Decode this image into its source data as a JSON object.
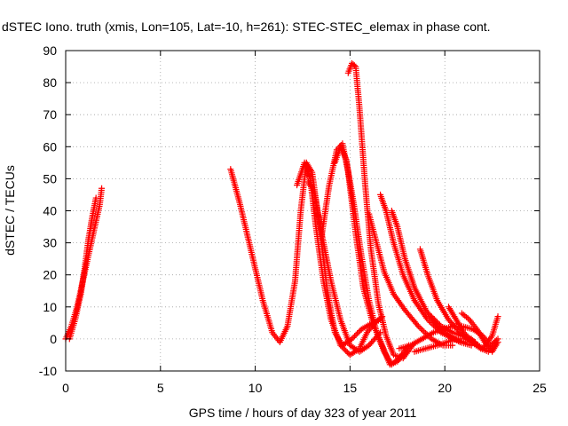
{
  "chart_data": {
    "type": "scatter",
    "title": "dSTEC Iono. truth (xmis, Lon=105, Lat=-10, h=261): STEC-STEC_elemax in phase cont.",
    "xlabel": "GPS time / hours of day 323 of year 2011",
    "ylabel": "dSTEC  / TECUs",
    "xlim": [
      0,
      25
    ],
    "ylim": [
      -10,
      90
    ],
    "x_ticks": [
      "0",
      "5",
      "10",
      "15",
      "20",
      "25"
    ],
    "y_ticks": [
      "-10",
      "0",
      "10",
      "20",
      "30",
      "40",
      "50",
      "60",
      "70",
      "80",
      "90"
    ],
    "grid": true,
    "marker": "plus",
    "color": "#ff0000",
    "series": [
      {
        "points": [
          [
            0.0,
            0
          ],
          [
            0.3,
            4
          ],
          [
            0.6,
            10
          ],
          [
            0.9,
            18
          ],
          [
            1.2,
            26
          ],
          [
            1.5,
            34
          ],
          [
            1.8,
            42
          ],
          [
            1.9,
            47
          ]
        ]
      },
      {
        "points": [
          [
            0.2,
            0
          ],
          [
            0.5,
            6
          ],
          [
            0.8,
            14
          ],
          [
            1.0,
            22
          ],
          [
            1.2,
            31
          ],
          [
            1.4,
            38
          ],
          [
            1.6,
            44
          ]
        ]
      },
      {
        "points": [
          [
            8.7,
            53
          ],
          [
            9.2,
            42
          ],
          [
            9.8,
            27
          ],
          [
            10.4,
            12
          ],
          [
            10.9,
            2
          ],
          [
            11.3,
            -1
          ],
          [
            11.7,
            4
          ],
          [
            12.1,
            18
          ],
          [
            12.4,
            40
          ],
          [
            12.7,
            55
          ],
          [
            13.0,
            52
          ],
          [
            13.4,
            35
          ],
          [
            13.8,
            15
          ],
          [
            14.2,
            2
          ],
          [
            14.6,
            -2
          ],
          [
            15.1,
            0
          ],
          [
            15.6,
            3
          ],
          [
            16.2,
            5
          ],
          [
            16.6,
            6
          ]
        ]
      },
      {
        "points": [
          [
            12.2,
            48
          ],
          [
            12.6,
            55
          ],
          [
            12.9,
            50
          ],
          [
            13.2,
            35
          ],
          [
            13.6,
            18
          ],
          [
            14.0,
            6
          ],
          [
            14.5,
            -2
          ],
          [
            15.0,
            -5
          ],
          [
            15.5,
            -3
          ],
          [
            15.9,
            2
          ],
          [
            16.3,
            5
          ],
          [
            16.7,
            7
          ]
        ]
      },
      {
        "points": [
          [
            12.8,
            49
          ],
          [
            13.1,
            46
          ],
          [
            13.5,
            33
          ],
          [
            14.0,
            18
          ],
          [
            14.5,
            6
          ],
          [
            15.0,
            -2
          ],
          [
            15.5,
            -4
          ],
          [
            16.0,
            -2
          ],
          [
            16.6,
            2
          ]
        ]
      },
      {
        "points": [
          [
            13.5,
            32
          ],
          [
            13.9,
            48
          ],
          [
            14.3,
            59
          ],
          [
            14.6,
            61
          ],
          [
            14.9,
            52
          ],
          [
            15.3,
            33
          ],
          [
            15.7,
            16
          ],
          [
            16.2,
            5
          ],
          [
            16.7,
            -2
          ],
          [
            17.1,
            -8
          ],
          [
            17.5,
            -7
          ],
          [
            18.0,
            -4
          ]
        ]
      },
      {
        "points": [
          [
            14.2,
            55
          ],
          [
            14.5,
            60
          ],
          [
            14.8,
            56
          ],
          [
            15.2,
            42
          ],
          [
            15.6,
            26
          ],
          [
            16.0,
            12
          ],
          [
            16.4,
            2
          ],
          [
            16.8,
            -4
          ],
          [
            17.2,
            -8
          ],
          [
            17.6,
            -6
          ],
          [
            18.1,
            -2
          ]
        ]
      },
      {
        "points": [
          [
            14.9,
            83
          ],
          [
            15.1,
            86
          ],
          [
            15.3,
            85
          ],
          [
            15.5,
            72
          ],
          [
            15.8,
            48
          ],
          [
            16.1,
            28
          ],
          [
            16.5,
            11
          ],
          [
            16.9,
            1
          ],
          [
            17.3,
            -5
          ],
          [
            17.8,
            -6
          ],
          [
            18.3,
            -2
          ]
        ]
      },
      {
        "points": [
          [
            16.0,
            39
          ],
          [
            16.4,
            30
          ],
          [
            16.8,
            21
          ],
          [
            17.3,
            14
          ],
          [
            17.9,
            9
          ],
          [
            18.6,
            4
          ],
          [
            19.3,
            0
          ],
          [
            19.9,
            -2
          ],
          [
            20.4,
            -2
          ]
        ]
      },
      {
        "points": [
          [
            16.6,
            45
          ],
          [
            16.9,
            40
          ],
          [
            17.3,
            30
          ],
          [
            17.8,
            20
          ],
          [
            18.4,
            12
          ],
          [
            19.1,
            6
          ],
          [
            19.8,
            2
          ],
          [
            20.5,
            0
          ],
          [
            21.0,
            -1
          ]
        ]
      },
      {
        "points": [
          [
            17.2,
            40
          ],
          [
            17.5,
            35
          ],
          [
            17.9,
            25
          ],
          [
            18.4,
            16
          ],
          [
            19.0,
            9
          ],
          [
            19.6,
            4
          ],
          [
            20.2,
            1
          ],
          [
            20.8,
            -1
          ],
          [
            21.4,
            -2
          ]
        ]
      },
      {
        "points": [
          [
            18.7,
            28
          ],
          [
            19.1,
            20
          ],
          [
            19.6,
            12
          ],
          [
            20.2,
            6
          ],
          [
            20.8,
            2
          ],
          [
            21.4,
            -1
          ],
          [
            21.9,
            -3
          ],
          [
            22.3,
            -3
          ]
        ]
      },
      {
        "points": [
          [
            17.6,
            -3
          ],
          [
            18.2,
            -2
          ],
          [
            18.8,
            0
          ],
          [
            19.4,
            2
          ],
          [
            19.9,
            3
          ],
          [
            20.4,
            4
          ],
          [
            20.9,
            4
          ],
          [
            21.5,
            3
          ],
          [
            22.0,
            1
          ],
          [
            22.4,
            -2
          ],
          [
            22.8,
            0
          ]
        ]
      },
      {
        "points": [
          [
            19.3,
            7
          ],
          [
            19.8,
            4
          ],
          [
            20.4,
            2
          ],
          [
            20.9,
            1
          ],
          [
            21.4,
            0
          ],
          [
            21.9,
            -3
          ],
          [
            22.3,
            -4
          ],
          [
            22.7,
            -1
          ]
        ]
      },
      {
        "points": [
          [
            20.2,
            10
          ],
          [
            20.6,
            6
          ],
          [
            21.0,
            2
          ],
          [
            21.5,
            -1
          ],
          [
            22.0,
            -3
          ],
          [
            22.5,
            1
          ],
          [
            22.8,
            7
          ]
        ]
      },
      {
        "points": [
          [
            20.9,
            8
          ],
          [
            21.3,
            6
          ],
          [
            21.7,
            3
          ],
          [
            22.1,
            -1
          ],
          [
            22.5,
            -4
          ],
          [
            22.8,
            -1
          ]
        ]
      },
      {
        "points": [
          [
            18.4,
            -4
          ],
          [
            19.0,
            -3
          ],
          [
            19.6,
            -2
          ],
          [
            20.1,
            -1
          ],
          [
            20.6,
            0
          ],
          [
            21.1,
            0
          ],
          [
            21.6,
            -1
          ]
        ]
      }
    ]
  }
}
